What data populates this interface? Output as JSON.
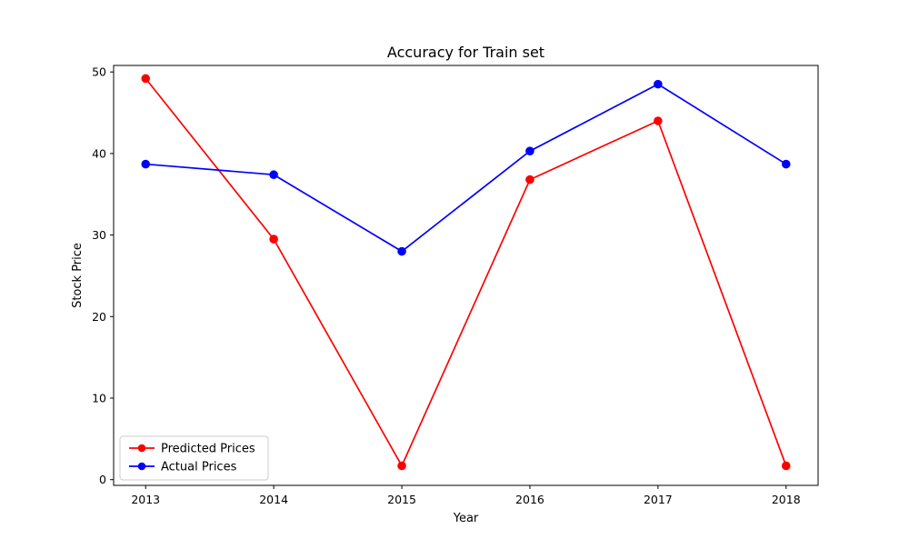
{
  "chart_data": {
    "type": "line",
    "title": "Accuracy for Train set",
    "xlabel": "Year",
    "ylabel": "Stock Price",
    "x": [
      2013,
      2014,
      2015,
      2016,
      2017,
      2018
    ],
    "x_ticks": [
      "2013",
      "2014",
      "2015",
      "2016",
      "2017",
      "2018"
    ],
    "y_ticks": [
      0,
      10,
      20,
      30,
      40,
      50
    ],
    "xlim": [
      2012.75,
      2018.25
    ],
    "ylim": [
      -0.7,
      50.8
    ],
    "grid": false,
    "legend_position": "lower-left",
    "series": [
      {
        "name": "Predicted Prices",
        "color": "#ff0000",
        "marker": "circle",
        "values": [
          49.2,
          29.5,
          1.7,
          36.8,
          44.0,
          1.7
        ]
      },
      {
        "name": "Actual Prices",
        "color": "#0000ff",
        "marker": "circle",
        "values": [
          38.7,
          37.4,
          28.0,
          40.3,
          48.5,
          38.7
        ]
      }
    ]
  }
}
